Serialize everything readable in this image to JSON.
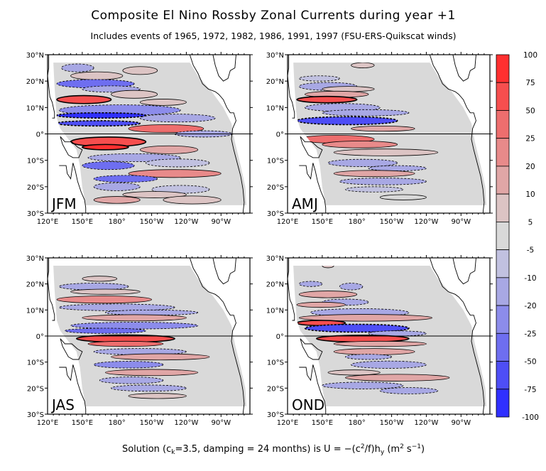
{
  "title": "Composite El Nino Rossby Zonal Currents during year   +1",
  "subtitle": "Includes events of 1965, 1972, 1982, 1986, 1991, 1997 (FSU-ERS-Quikscat winds)",
  "footer": {
    "p1": "Solution (c",
    "p1_sub": "k",
    "p2": "=3.5, damping = 24 months) is U = −(c",
    "p2_sup": "2",
    "p3": "/f)h",
    "p3_sub": "y",
    "p4": " (m",
    "p4_sup": "2",
    "p5": " s",
    "p5_sup": "−1",
    "p6": ")"
  },
  "chart_data": {
    "type": "heatmap",
    "subtype": "filled contour map",
    "units": "m2 s-1",
    "lat_ticks": [
      "30°N",
      "20°N",
      "10°N",
      "0°",
      "10°S",
      "20°S",
      "30°S"
    ],
    "lon_ticks": [
      "120°E",
      "150°E",
      "180°",
      "150°W",
      "120°W",
      "90°W"
    ],
    "lon_range_deg_east": [
      120,
      295
    ],
    "lat_range": [
      -30,
      30
    ],
    "colorbar": {
      "labels": [
        "100",
        "75",
        "50",
        "25",
        "20",
        "10",
        "5",
        "-5",
        "-10",
        "-20",
        "-25",
        "-50",
        "-75",
        "-100"
      ],
      "colors": [
        "#ff3030",
        "#f64e4e",
        "#ee6e6e",
        "#e88a8a",
        "#e0a6a6",
        "#dcc4c4",
        "#d9d9d9",
        "#c1c1e0",
        "#a8a8e4",
        "#8c8ceb",
        "#6e6ef0",
        "#4e4ef6",
        "#3030ff"
      ]
    },
    "panels": [
      {
        "label": "JFM",
        "bands": [
          [
            25,
            132,
            160,
            1.5,
            -10
          ],
          [
            24,
            185,
            215,
            1.5,
            8
          ],
          [
            22,
            140,
            185,
            1.5,
            7
          ],
          [
            19,
            128,
            195,
            1.6,
            -25
          ],
          [
            17,
            150,
            200,
            1.2,
            -10
          ],
          [
            15,
            175,
            215,
            1.5,
            10
          ],
          [
            13,
            128,
            175,
            1.5,
            55
          ],
          [
            12,
            200,
            240,
            1.2,
            8
          ],
          [
            9,
            130,
            235,
            2.0,
            -20
          ],
          [
            7,
            128,
            205,
            1.0,
            -80
          ],
          [
            6,
            200,
            265,
            1.5,
            -12
          ],
          [
            4,
            128,
            200,
            1.0,
            -60
          ],
          [
            2,
            190,
            255,
            1.5,
            30
          ],
          [
            0,
            230,
            280,
            1.2,
            -15
          ],
          [
            -3,
            140,
            205,
            1.8,
            55
          ],
          [
            -5,
            150,
            190,
            1.0,
            80
          ],
          [
            -6,
            200,
            250,
            1.5,
            12
          ],
          [
            -9,
            155,
            235,
            1.5,
            -10
          ],
          [
            -12,
            150,
            195,
            1.5,
            -30
          ],
          [
            -11,
            205,
            260,
            1.5,
            -8
          ],
          [
            -15,
            190,
            270,
            1.5,
            22
          ],
          [
            -17,
            160,
            215,
            1.3,
            -25
          ],
          [
            -20,
            160,
            200,
            1.5,
            -12
          ],
          [
            -21,
            210,
            260,
            1.5,
            -8
          ],
          [
            -23,
            185,
            240,
            1.2,
            8
          ],
          [
            -25,
            160,
            200,
            1.3,
            12
          ],
          [
            -25,
            220,
            270,
            1.5,
            10
          ]
        ]
      },
      {
        "label": "AMJ",
        "bands": [
          [
            26,
            175,
            195,
            1.0,
            8
          ],
          [
            21,
            130,
            165,
            1.0,
            -8
          ],
          [
            18,
            130,
            180,
            1.5,
            -15
          ],
          [
            17,
            150,
            195,
            1.0,
            7
          ],
          [
            15,
            135,
            190,
            1.2,
            15
          ],
          [
            13,
            128,
            180,
            1.2,
            55
          ],
          [
            10,
            135,
            200,
            1.5,
            -10
          ],
          [
            8,
            150,
            225,
            1.2,
            -15
          ],
          [
            5,
            128,
            215,
            1.5,
            -55
          ],
          [
            2,
            175,
            230,
            1.0,
            12
          ],
          [
            -2,
            130,
            195,
            1.5,
            45
          ],
          [
            -4,
            150,
            215,
            1.3,
            25
          ],
          [
            -7,
            160,
            250,
            1.3,
            10
          ],
          [
            -11,
            155,
            215,
            1.4,
            -15
          ],
          [
            -13,
            190,
            240,
            1.0,
            -10
          ],
          [
            -15,
            160,
            230,
            1.2,
            15
          ],
          [
            -18,
            165,
            240,
            1.3,
            -12
          ],
          [
            -21,
            170,
            220,
            1.0,
            -8
          ],
          [
            -24,
            200,
            240,
            1.0,
            5
          ]
        ]
      },
      {
        "label": "JAS",
        "bands": [
          [
            22,
            150,
            180,
            1.0,
            8
          ],
          [
            19,
            130,
            190,
            1.3,
            -15
          ],
          [
            17,
            140,
            200,
            1.0,
            10
          ],
          [
            14,
            128,
            210,
            1.4,
            25
          ],
          [
            11,
            130,
            230,
            1.3,
            -12
          ],
          [
            9,
            170,
            250,
            1.0,
            -10
          ],
          [
            7,
            150,
            240,
            1.2,
            15
          ],
          [
            4,
            140,
            250,
            1.3,
            -20
          ],
          [
            2,
            135,
            205,
            1.0,
            -25
          ],
          [
            -1,
            145,
            230,
            1.4,
            55
          ],
          [
            -3,
            155,
            220,
            1.0,
            30
          ],
          [
            -6,
            160,
            240,
            1.2,
            -10
          ],
          [
            -8,
            175,
            260,
            1.2,
            12
          ],
          [
            -11,
            160,
            220,
            1.3,
            -20
          ],
          [
            -14,
            170,
            250,
            1.2,
            20
          ],
          [
            -17,
            165,
            220,
            1.3,
            -15
          ],
          [
            -20,
            175,
            240,
            1.2,
            -10
          ],
          [
            -23,
            190,
            240,
            1.0,
            8
          ]
        ]
      },
      {
        "label": "OND",
        "bands": [
          [
            27,
            150,
            160,
            0.8,
            8
          ],
          [
            20,
            130,
            150,
            1.0,
            -10
          ],
          [
            19,
            165,
            185,
            1.3,
            -15
          ],
          [
            16,
            130,
            180,
            1.3,
            15
          ],
          [
            13,
            150,
            190,
            1.2,
            -15
          ],
          [
            12,
            128,
            170,
            1.0,
            20
          ],
          [
            9,
            140,
            225,
            1.5,
            -15
          ],
          [
            7,
            130,
            245,
            1.3,
            20
          ],
          [
            5,
            128,
            170,
            1.0,
            55
          ],
          [
            3,
            135,
            225,
            1.5,
            -55
          ],
          [
            1,
            190,
            240,
            1.0,
            -10
          ],
          [
            -1,
            145,
            225,
            1.3,
            60
          ],
          [
            -3,
            160,
            240,
            1.0,
            15
          ],
          [
            -6,
            160,
            230,
            1.2,
            20
          ],
          [
            -8,
            170,
            210,
            1.0,
            -12
          ],
          [
            -11,
            175,
            240,
            1.4,
            -15
          ],
          [
            -14,
            155,
            200,
            1.0,
            10
          ],
          [
            -16,
            170,
            260,
            1.3,
            15
          ],
          [
            -19,
            150,
            220,
            1.3,
            -15
          ],
          [
            -21,
            200,
            250,
            1.2,
            -10
          ]
        ]
      }
    ]
  }
}
